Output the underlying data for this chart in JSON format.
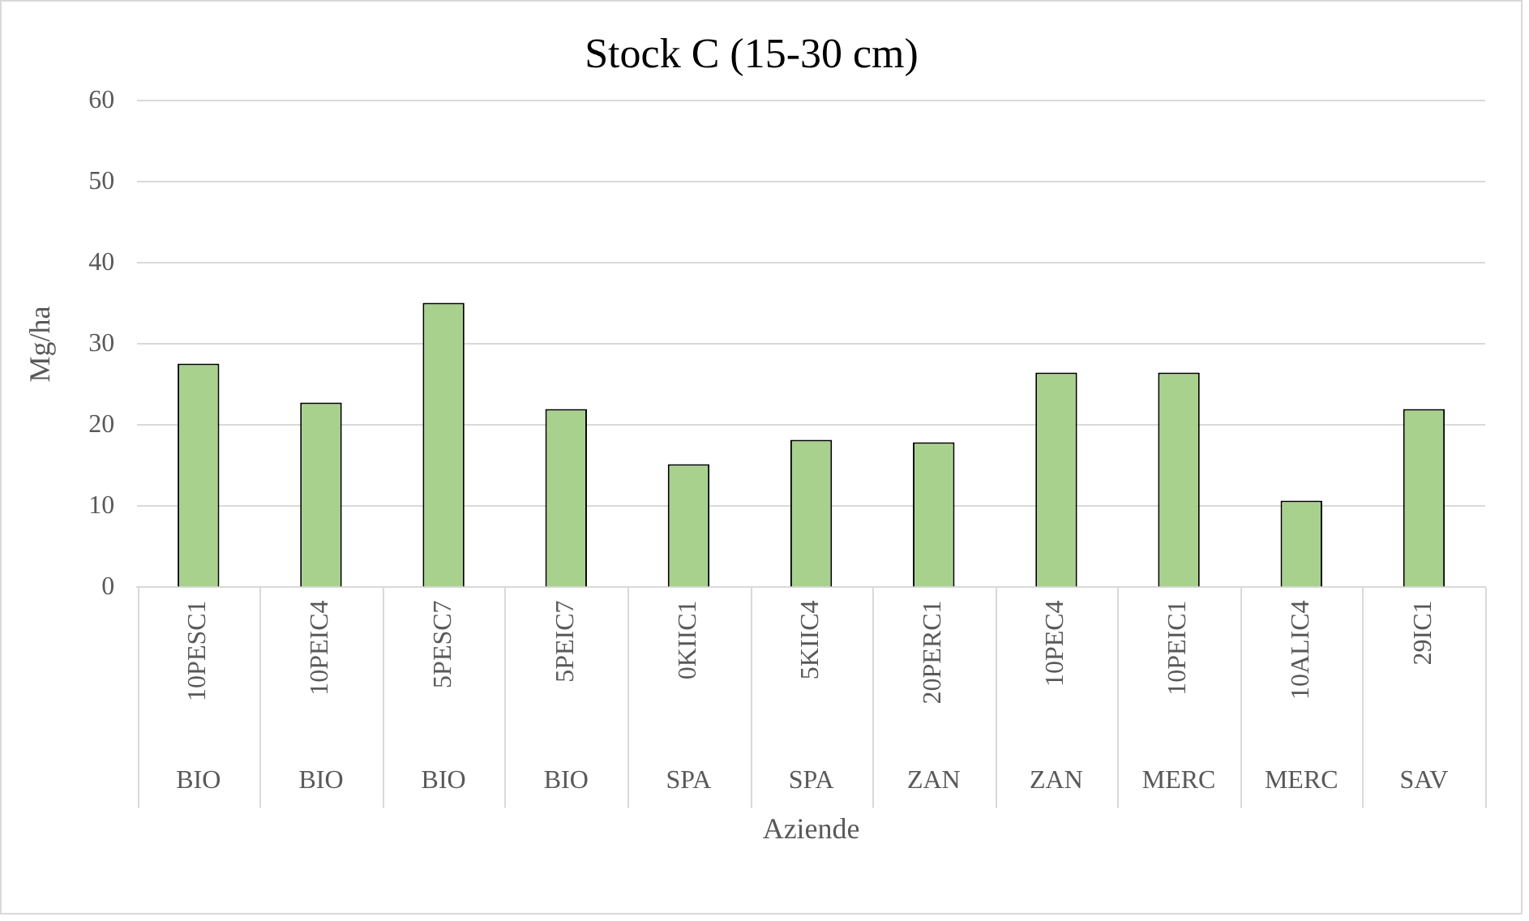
{
  "chart_data": {
    "type": "bar",
    "title": "Stock C (15-30 cm)",
    "xlabel": "Aziende",
    "ylabel": "Mg/ha",
    "categories": [
      "10PESC1",
      "10PEIC4",
      "5PESC7",
      "5PEIC7",
      "0KIIC1",
      "5KIIC4",
      "20PERC1",
      "10PEC4",
      "10PEIC1",
      "10ALIC4",
      "29IC1"
    ],
    "values": [
      27.6,
      22.8,
      35.1,
      22.0,
      15.2,
      18.2,
      17.9,
      26.5,
      26.5,
      10.7,
      22.0
    ],
    "color": "#a9d18e",
    "ylim": [
      0,
      60
    ],
    "yticks": [
      0,
      10,
      20,
      30,
      40,
      50,
      60
    ],
    "grid": "y",
    "legend": false,
    "annotations": [
      "BIO",
      "BIO",
      "BIO",
      "BIO",
      "SPA",
      "SPA",
      "ZAN",
      "ZAN",
      "MERC",
      "MERC",
      "SAV"
    ]
  }
}
